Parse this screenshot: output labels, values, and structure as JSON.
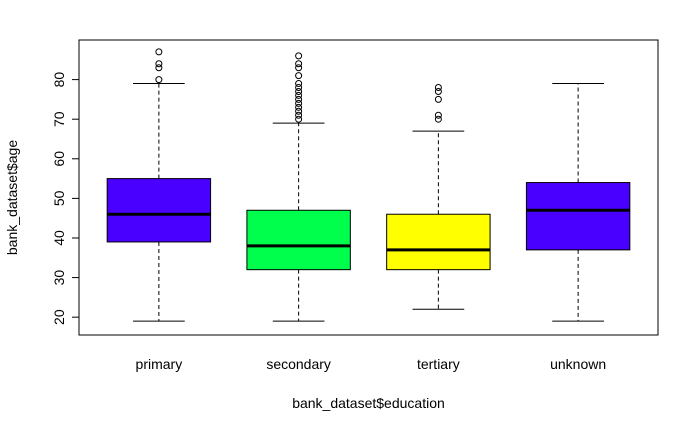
{
  "chart_data": {
    "type": "boxplot",
    "title": "",
    "xlabel": "bank_dataset$education",
    "ylabel": "bank_dataset$age",
    "ylim": [
      15.5,
      90
    ],
    "yticks": [
      20,
      30,
      40,
      50,
      60,
      70,
      80
    ],
    "grid": false,
    "legend": "none",
    "categories": [
      "primary",
      "secondary",
      "tertiary",
      "unknown"
    ],
    "boxes": [
      {
        "category": "primary",
        "color": "#4A00FF",
        "whisker_low": 19,
        "q1": 39,
        "median": 46,
        "q3": 55,
        "whisker_high": 79,
        "outliers": [
          80,
          83,
          84,
          87
        ]
      },
      {
        "category": "secondary",
        "color": "#00FF4D",
        "whisker_low": 19,
        "q1": 32,
        "median": 38,
        "q3": 47,
        "whisker_high": 69,
        "outliers": [
          70,
          71,
          72,
          73,
          74,
          75,
          76,
          77,
          78,
          79,
          81,
          83,
          84,
          86
        ]
      },
      {
        "category": "tertiary",
        "color": "#FFFF00",
        "whisker_low": 22,
        "q1": 32,
        "median": 37,
        "q3": 46,
        "whisker_high": 67,
        "outliers": [
          70,
          71,
          75,
          77,
          78
        ]
      },
      {
        "category": "unknown",
        "color": "#4A00FF",
        "whisker_low": 19,
        "q1": 37,
        "median": 47,
        "q3": 54,
        "whisker_high": 79,
        "outliers": []
      }
    ]
  }
}
